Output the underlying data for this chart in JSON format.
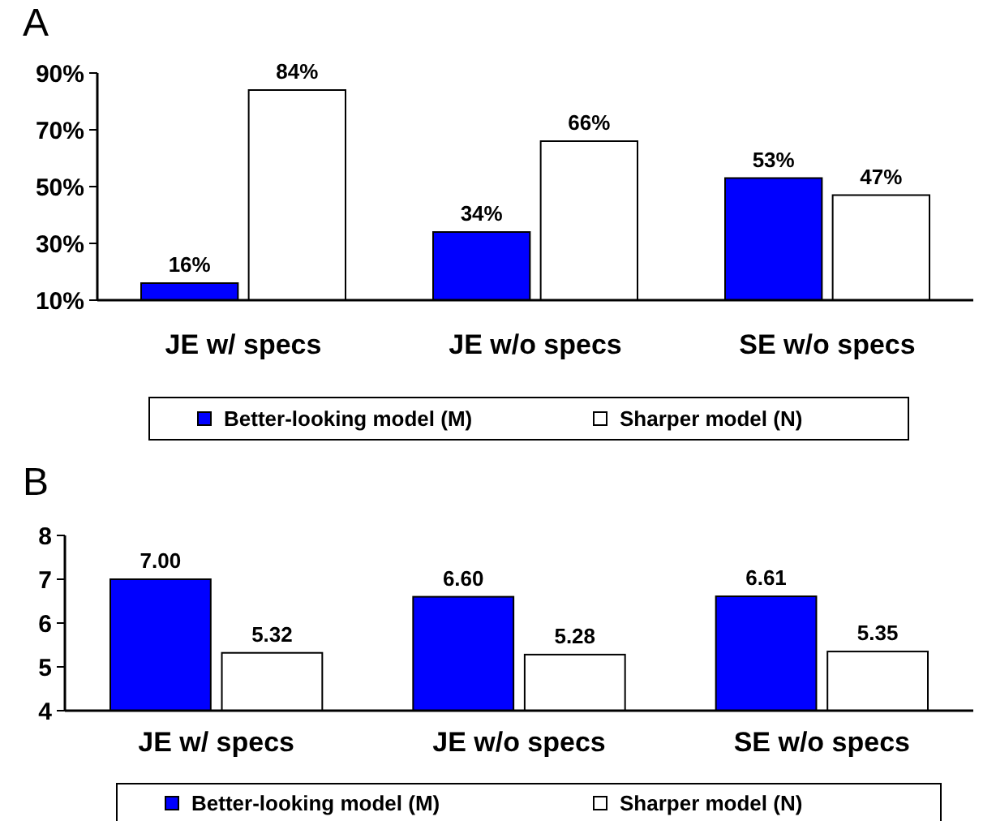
{
  "chart_data": [
    {
      "type": "bar",
      "title": "A",
      "categories": [
        "JE w/ specs",
        "JE w/o specs",
        "SE w/o specs"
      ],
      "series": [
        {
          "name": "Better-looking model (M)",
          "color": "#0000ff",
          "values": [
            16,
            34,
            53
          ],
          "value_labels": [
            "16%",
            "34%",
            "53%"
          ]
        },
        {
          "name": "Sharper model (N)",
          "color": "#ffffff",
          "values": [
            84,
            66,
            47
          ],
          "value_labels": [
            "84%",
            "66%",
            "47%"
          ]
        }
      ],
      "ylim": [
        10,
        90
      ],
      "yticks": [
        {
          "value": 10,
          "label": "10%"
        },
        {
          "value": 30,
          "label": "30%"
        },
        {
          "value": 50,
          "label": "50%"
        },
        {
          "value": 70,
          "label": "70%"
        },
        {
          "value": 90,
          "label": "90%"
        }
      ],
      "legend": "bottom",
      "grid": false
    },
    {
      "type": "bar",
      "title": "B",
      "categories": [
        "JE w/ specs",
        "JE w/o specs",
        "SE w/o specs"
      ],
      "series": [
        {
          "name": "Better-looking model (M)",
          "color": "#0000ff",
          "values": [
            7.0,
            6.6,
            6.61
          ],
          "value_labels": [
            "7.00",
            "6.60",
            "6.61"
          ]
        },
        {
          "name": "Sharper model (N)",
          "color": "#ffffff",
          "values": [
            5.32,
            5.28,
            5.35
          ],
          "value_labels": [
            "5.32",
            "5.28",
            "5.35"
          ]
        }
      ],
      "ylim": [
        4,
        8
      ],
      "yticks": [
        4,
        5,
        6,
        7,
        8
      ],
      "legend": "bottom",
      "grid": false
    }
  ]
}
